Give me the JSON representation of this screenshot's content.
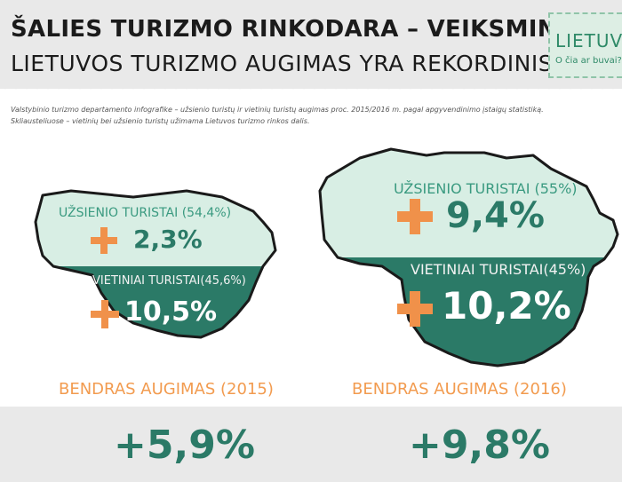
{
  "header": {
    "title_line1": "ŠALIES TURIZMO RINKODARA – VEIKSMINGA:",
    "title_line2": "LIETUVOS TURIZMO AUGIMAS YRA REKORDINIS"
  },
  "logo": {
    "word": "LIETUVA",
    "tagline": "O čia ar buvai?"
  },
  "description": {
    "line1": "Valstybinio turizmo departamento infografike – užsienio turistų ir vietinių turistų augimas proc. 2015/2016 m. pagal apgyvendinimo įstaigų statistiką.",
    "line2": "Skliausteliuose – vietinių bei užsienio turistų užimama Lietuvos turizmo rinkos dalis."
  },
  "y2015": {
    "foreign_label": "UŽSIENIO TURISTAI (54,4%)",
    "foreign_growth": "2,3%",
    "local_label": "VIETINIAI TURISTAI(45,6%)",
    "local_growth": "10,5%",
    "total_label": "BENDRAS AUGIMAS (2015)",
    "total_value": "+5,9%"
  },
  "y2016": {
    "foreign_label": "UŽSIENIO TURISTAI (55%)",
    "foreign_growth": "9,4%",
    "local_label": "VIETINIAI TURISTAI(45%)",
    "local_growth": "10,2%",
    "total_label": "BENDRAS AUGIMAS (2016)",
    "total_value": "+9,8%"
  },
  "colors": {
    "dark_green": "#2b7a67",
    "light_green": "#d8eee4",
    "orange": "#f0914a",
    "text_orange": "#f29b4f"
  }
}
